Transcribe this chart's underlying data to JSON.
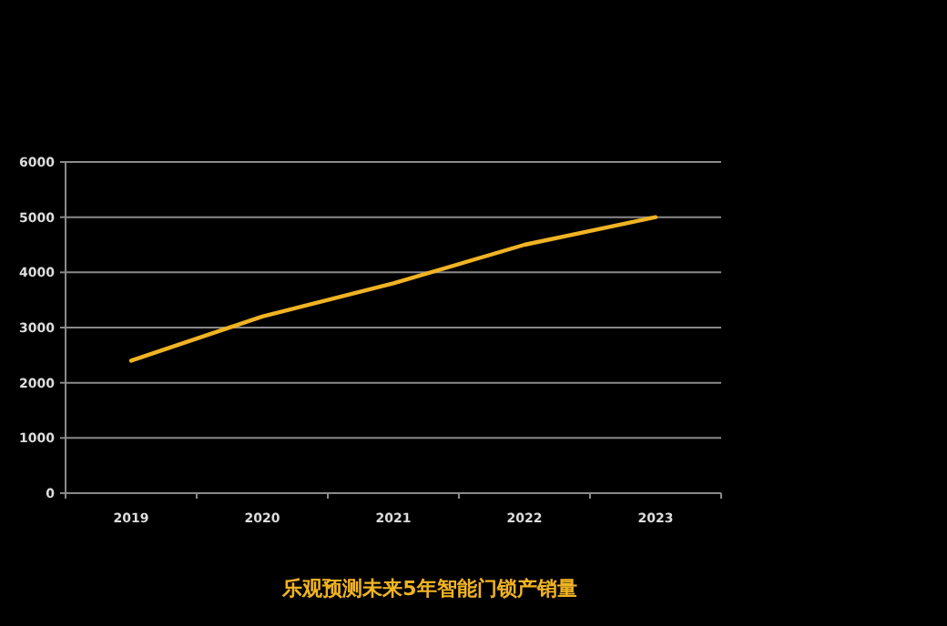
{
  "chart_data": {
    "type": "line",
    "title": "乐观预测未来5年智能门锁产销量",
    "categories": [
      "2019",
      "2020",
      "2021",
      "2022",
      "2023"
    ],
    "series": [
      {
        "color": "#f0b323",
        "values": [
          2400,
          3200,
          3800,
          4500,
          5000
        ]
      }
    ],
    "ylim": [
      0,
      6000
    ],
    "yticks": [
      0,
      1000,
      2000,
      3000,
      4000,
      5000,
      6000
    ],
    "grid": "y",
    "marker": "none",
    "line_style": "solid"
  }
}
